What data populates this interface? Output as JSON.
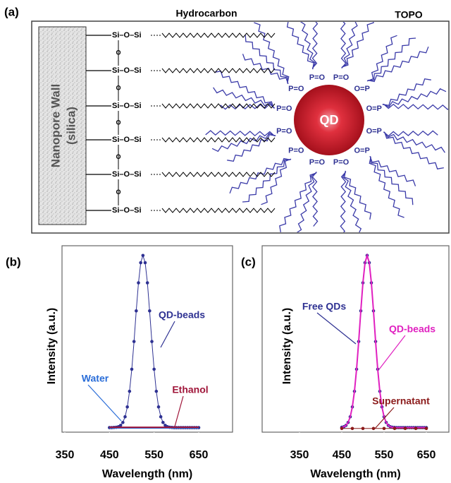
{
  "figure": {
    "panel_a": {
      "label": "(a)",
      "wall_label": [
        "Nanopore Wall",
        "(silica)"
      ],
      "hydrocarbon": "Hydrocarbon",
      "topo": "TOPO",
      "qd": "QD",
      "si_labels": [
        "Si–O–Si",
        "Si–O–Si",
        "Si–O–Si",
        "Si–O–Si",
        "Si–O–Si",
        "Si–O–Si"
      ],
      "bridge_labels": [
        "O",
        "O",
        "O",
        "O",
        "O"
      ],
      "ligand_labels": [
        "O=P",
        "O=P",
        "P=O",
        "P=O",
        "P=O",
        "P=O",
        "P=O",
        "P=O",
        "P=O",
        "P=O",
        "O=P",
        "O=P"
      ]
    }
  },
  "chart_data": [
    {
      "type": "line",
      "panel_label": "(b)",
      "xlabel": "Wavelength (nm)",
      "ylabel": "Intensity (a.u.)",
      "xlim": [
        350,
        650
      ],
      "xticks": [
        350,
        450,
        550,
        650
      ],
      "ylim": [
        0,
        1.05
      ],
      "series": [
        {
          "name": "QD-beads",
          "color": "#2e3192",
          "style": "markers",
          "x": [
            450,
            455,
            460,
            465,
            470,
            475,
            480,
            485,
            490,
            495,
            500,
            505,
            510,
            515,
            520,
            525,
            530,
            535,
            540,
            545,
            550,
            555,
            560,
            565,
            570,
            575,
            580,
            585,
            590,
            595,
            600,
            605,
            610,
            615,
            620,
            625,
            630,
            635,
            640,
            645,
            650
          ],
          "values": [
            0.01,
            0.01,
            0.011,
            0.012,
            0.015,
            0.023,
            0.04,
            0.073,
            0.13,
            0.221,
            0.349,
            0.51,
            0.688,
            0.851,
            0.968,
            1.01,
            0.968,
            0.851,
            0.688,
            0.51,
            0.349,
            0.221,
            0.13,
            0.073,
            0.04,
            0.023,
            0.015,
            0.012,
            0.011,
            0.01,
            0.01,
            0.01,
            0.01,
            0.01,
            0.01,
            0.01,
            0.01,
            0.01,
            0.01,
            0.01,
            0.01
          ]
        },
        {
          "name": "Water",
          "color": "#2a6dd8",
          "style": "line",
          "x": [
            450,
            500,
            550,
            600,
            650
          ],
          "values": [
            0.008,
            0.008,
            0.008,
            0.008,
            0.008
          ]
        },
        {
          "name": "Ethanol",
          "color": "#a0163a",
          "style": "line",
          "x": [
            450,
            500,
            550,
            600,
            650
          ],
          "values": [
            0.012,
            0.012,
            0.012,
            0.012,
            0.012
          ]
        }
      ]
    },
    {
      "type": "line",
      "panel_label": "(c)",
      "xlabel": "Wavelength (nm)",
      "ylabel": "Intensity (a.u.)",
      "xlim": [
        350,
        650
      ],
      "xticks": [
        350,
        450,
        550,
        650
      ],
      "ylim": [
        0,
        1.05
      ],
      "series": [
        {
          "name": "Free QDs",
          "color": "#2e3192",
          "style": "markers",
          "x": [
            450,
            455,
            460,
            465,
            470,
            475,
            480,
            485,
            490,
            495,
            500,
            505,
            510,
            515,
            520,
            525,
            530,
            535,
            540,
            545,
            550,
            555,
            560,
            565,
            570,
            575,
            580,
            585,
            590,
            595,
            600,
            605,
            610,
            615,
            620,
            625,
            630,
            635,
            640,
            645,
            650
          ],
          "values": [
            0.012,
            0.015,
            0.023,
            0.04,
            0.073,
            0.13,
            0.221,
            0.349,
            0.51,
            0.688,
            0.851,
            0.968,
            1.01,
            0.968,
            0.851,
            0.688,
            0.51,
            0.349,
            0.221,
            0.13,
            0.073,
            0.04,
            0.023,
            0.015,
            0.012,
            0.011,
            0.01,
            0.01,
            0.01,
            0.01,
            0.01,
            0.01,
            0.01,
            0.01,
            0.01,
            0.01,
            0.01,
            0.01,
            0.01,
            0.01,
            0.01
          ]
        },
        {
          "name": "QD-beads",
          "color": "#e020c0",
          "style": "line",
          "x": [
            450,
            455,
            460,
            465,
            470,
            475,
            480,
            485,
            490,
            495,
            500,
            505,
            510,
            515,
            520,
            525,
            530,
            535,
            540,
            545,
            550,
            555,
            560,
            565,
            570,
            575,
            580,
            585,
            590,
            595,
            600,
            605,
            610,
            615,
            620,
            625,
            630,
            635,
            640,
            645,
            650
          ],
          "values": [
            0.012,
            0.015,
            0.023,
            0.04,
            0.073,
            0.13,
            0.221,
            0.349,
            0.51,
            0.688,
            0.851,
            0.968,
            1.01,
            0.968,
            0.851,
            0.688,
            0.51,
            0.349,
            0.221,
            0.13,
            0.073,
            0.04,
            0.023,
            0.015,
            0.012,
            0.011,
            0.01,
            0.01,
            0.01,
            0.01,
            0.01,
            0.01,
            0.01,
            0.01,
            0.01,
            0.01,
            0.01,
            0.01,
            0.01,
            0.01,
            0.01
          ]
        },
        {
          "name": "Supernatant",
          "color": "#8b1a1a",
          "style": "markers",
          "x": [
            450,
            475,
            500,
            525,
            550,
            575,
            600,
            625,
            650
          ],
          "values": [
            0.005,
            0.005,
            0.005,
            0.005,
            0.005,
            0.005,
            0.005,
            0.005,
            0.005
          ]
        }
      ]
    }
  ]
}
